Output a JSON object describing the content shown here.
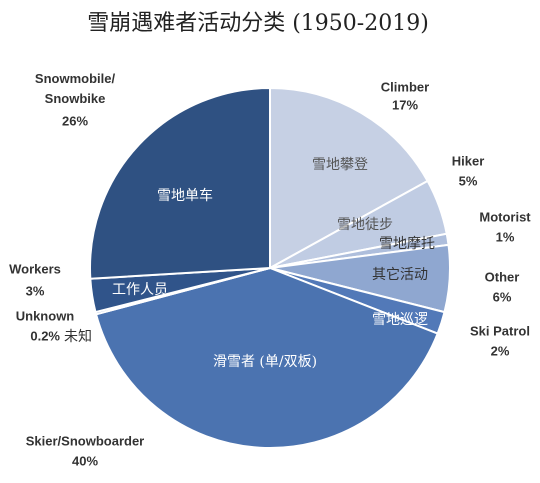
{
  "chart_data": {
    "type": "pie",
    "title": "雪崩遇难者活动分类 (1950-2019)",
    "categories": [
      "Climber",
      "Hiker",
      "Motorist",
      "Other",
      "Ski Patrol",
      "Skier/Snowboarder",
      "Unknown",
      "Workers",
      "Snowmobile/Snowbike"
    ],
    "values": [
      17,
      5,
      1,
      6,
      2,
      40,
      0.2,
      3,
      26
    ],
    "value_labels": [
      "17%",
      "5%",
      "1%",
      "6%",
      "2%",
      "40%",
      "0.2%",
      "3%",
      "26%"
    ],
    "inner_labels": [
      "雪地攀登",
      "雪地徒步",
      "雪地摩托",
      "其它活动",
      "雪地巡逻",
      "滑雪者 (单/双板)",
      "未知",
      "工作人员",
      "雪地单车"
    ],
    "colors": [
      "#c6d0e4",
      "#c0cce3",
      "#aebedc",
      "#8fa7d0",
      "#5279b8",
      "#4b73b0",
      "#4068a6",
      "#30548a",
      "#2f5182"
    ]
  }
}
